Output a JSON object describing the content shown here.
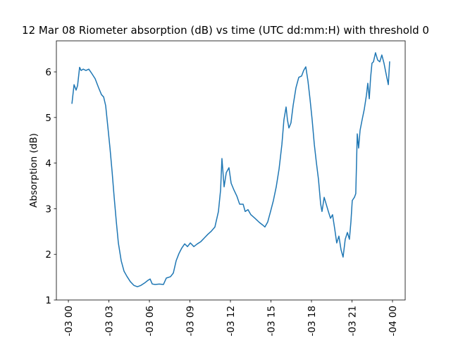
{
  "chart_data": {
    "type": "line",
    "title": "12 Mar 08 Riometer absorption (dB) vs time (UTC dd:mm:H) with threshold 0",
    "ylabel": "Absorption (dB)",
    "xlim": [
      -0.89,
      24.94
    ],
    "ylim": [
      1,
      6.68
    ],
    "xticks": [
      {
        "value": 0,
        "label": "-03 00"
      },
      {
        "value": 3,
        "label": "-03 03"
      },
      {
        "value": 6,
        "label": "-03 06"
      },
      {
        "value": 9,
        "label": "-03 09"
      },
      {
        "value": 12,
        "label": "-03 12"
      },
      {
        "value": 15,
        "label": "-03 15"
      },
      {
        "value": 18,
        "label": "-03 18"
      },
      {
        "value": 21,
        "label": "-03 21"
      },
      {
        "value": 24,
        "label": "-04 00"
      }
    ],
    "yticks": [
      1,
      2,
      3,
      4,
      5,
      6
    ],
    "x": [
      0.26,
      0.42,
      0.57,
      0.68,
      0.83,
      0.94,
      1.1,
      1.3,
      1.51,
      1.72,
      1.98,
      2.24,
      2.45,
      2.61,
      2.76,
      2.92,
      3.08,
      3.24,
      3.39,
      3.55,
      3.7,
      3.91,
      4.12,
      4.33,
      4.59,
      4.85,
      5.11,
      5.37,
      5.63,
      5.89,
      6.05,
      6.21,
      6.42,
      6.73,
      7.04,
      7.25,
      7.56,
      7.77,
      7.98,
      8.19,
      8.4,
      8.61,
      8.82,
      9.03,
      9.29,
      9.55,
      9.81,
      10.07,
      10.33,
      10.59,
      10.85,
      11.11,
      11.27,
      11.37,
      11.53,
      11.69,
      11.89,
      12.05,
      12.26,
      12.47,
      12.68,
      12.94,
      13.09,
      13.3,
      13.51,
      13.82,
      14.14,
      14.4,
      14.55,
      14.76,
      14.97,
      15.18,
      15.39,
      15.6,
      15.81,
      15.96,
      16.12,
      16.22,
      16.33,
      16.48,
      16.64,
      16.85,
      17.06,
      17.27,
      17.42,
      17.58,
      17.74,
      17.89,
      18.05,
      18.21,
      18.36,
      18.52,
      18.68,
      18.78,
      18.94,
      19.09,
      19.25,
      19.41,
      19.56,
      19.72,
      19.87,
      20.03,
      20.19,
      20.34,
      20.5,
      20.66,
      20.81,
      20.92,
      21.02,
      21.18,
      21.28,
      21.39,
      21.49,
      21.6,
      21.75,
      21.91,
      22.07,
      22.17,
      22.28,
      22.38,
      22.48,
      22.59,
      22.74,
      22.9,
      23.06,
      23.21,
      23.37,
      23.53,
      23.69,
      23.79
    ],
    "series": [
      {
        "color": "#1f77b4",
        "values": [
          5.3,
          5.72,
          5.6,
          5.7,
          6.1,
          6.03,
          6.06,
          6.03,
          6.06,
          5.97,
          5.85,
          5.65,
          5.5,
          5.45,
          5.26,
          4.8,
          4.33,
          3.8,
          3.25,
          2.71,
          2.25,
          1.86,
          1.63,
          1.52,
          1.4,
          1.32,
          1.29,
          1.32,
          1.37,
          1.43,
          1.46,
          1.35,
          1.34,
          1.35,
          1.34,
          1.48,
          1.51,
          1.59,
          1.86,
          2.02,
          2.14,
          2.23,
          2.17,
          2.25,
          2.17,
          2.23,
          2.28,
          2.36,
          2.44,
          2.51,
          2.6,
          2.94,
          3.41,
          4.1,
          3.48,
          3.79,
          3.9,
          3.56,
          3.41,
          3.28,
          3.1,
          3.1,
          2.94,
          2.98,
          2.87,
          2.79,
          2.7,
          2.64,
          2.6,
          2.71,
          2.94,
          3.18,
          3.48,
          3.87,
          4.41,
          4.95,
          5.23,
          4.95,
          4.77,
          4.88,
          5.26,
          5.65,
          5.88,
          5.91,
          6.03,
          6.11,
          5.8,
          5.41,
          4.95,
          4.41,
          4.02,
          3.64,
          3.1,
          2.94,
          3.25,
          3.1,
          2.94,
          2.79,
          2.87,
          2.56,
          2.25,
          2.4,
          2.1,
          1.94,
          2.33,
          2.48,
          2.33,
          2.71,
          3.18,
          3.25,
          3.33,
          4.64,
          4.33,
          4.72,
          4.95,
          5.18,
          5.49,
          5.75,
          5.41,
          5.88,
          6.19,
          6.22,
          6.42,
          6.26,
          6.22,
          6.37,
          6.19,
          5.95,
          5.72,
          6.23
        ]
      }
    ]
  }
}
